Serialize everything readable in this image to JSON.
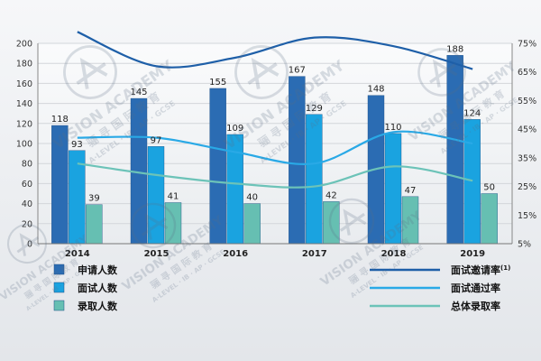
{
  "chart_data": {
    "type": "bar",
    "categories": [
      "2014",
      "2015",
      "2016",
      "2017",
      "2018",
      "2019"
    ],
    "y_left": {
      "min": 0,
      "max": 200,
      "ticks": [
        0,
        20,
        40,
        60,
        80,
        100,
        120,
        140,
        160,
        180,
        200
      ]
    },
    "y_right": {
      "min": 5,
      "max": 75,
      "ticks": [
        "5%",
        "15%",
        "25%",
        "35%",
        "45%",
        "55%",
        "65%",
        "75%"
      ]
    },
    "bar_series": [
      {
        "name": "申请人数",
        "color": "#2b6cb3",
        "values": [
          118,
          145,
          155,
          167,
          148,
          188
        ]
      },
      {
        "name": "面试人数",
        "color": "#1aa3e0",
        "values": [
          93,
          97,
          109,
          129,
          110,
          124
        ]
      },
      {
        "name": "录取人数",
        "color": "#66bfb2",
        "values": [
          39,
          41,
          40,
          42,
          47,
          50
        ]
      }
    ],
    "line_series": [
      {
        "name": "面试邀请率",
        "superscript": "(1)",
        "color": "#1e5fa8",
        "values": [
          79,
          67,
          70,
          77,
          74,
          66
        ]
      },
      {
        "name": "面试通过率",
        "color": "#29a9e6",
        "values": [
          42,
          42,
          37,
          33,
          44,
          40
        ]
      },
      {
        "name": "总体录取率",
        "color": "#6cc3b8",
        "values": [
          33,
          29,
          26,
          25,
          32,
          27
        ]
      }
    ],
    "grid": true,
    "legend": "bottom"
  },
  "watermark": {
    "brand": "VISION ACADEMY",
    "cn": "骊 寻 国 际 教 育",
    "sub": "A·LEVEL · IB · AP · GCSE"
  }
}
